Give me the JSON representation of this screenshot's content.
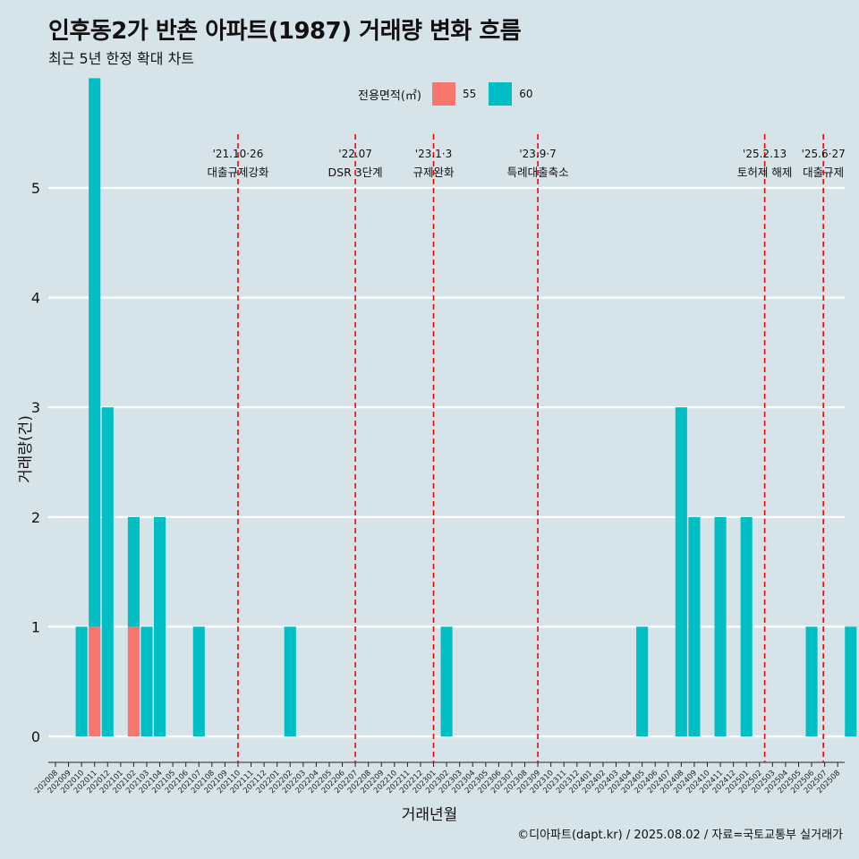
{
  "title": "인후동2가 반촌 아파트(1987) 거래량 변화 흐름",
  "subtitle": "최근 5년 한정 확대 차트",
  "legend": {
    "title": "전용면적(㎡)",
    "items": [
      {
        "label": "55",
        "color": "#F8766D"
      },
      {
        "label": "60",
        "color": "#00BFC4"
      }
    ]
  },
  "caption": "©디아파트(dapt.kr) / 2025.08.02 / 자료=국토교통부 실거래가",
  "chart_data": {
    "type": "bar",
    "title": "인후동2가 반촌 아파트(1987) 거래량 변화 흐름",
    "subtitle": "최근 5년 한정 확대 차트",
    "xlabel": "거래년월",
    "ylabel": "거래량(건)",
    "ylim": [
      0,
      5
    ],
    "yticks": [
      0,
      1,
      2,
      3,
      4,
      5
    ],
    "grid": true,
    "legend_position": "top",
    "categories": [
      "202008",
      "202009",
      "202010",
      "202011",
      "202012",
      "202101",
      "202102",
      "202103",
      "202104",
      "202105",
      "202106",
      "202107",
      "202108",
      "202109",
      "202110",
      "202111",
      "202112",
      "202201",
      "202202",
      "202203",
      "202204",
      "202205",
      "202206",
      "202207",
      "202208",
      "202209",
      "202210",
      "202211",
      "202212",
      "202301",
      "202302",
      "202303",
      "202304",
      "202305",
      "202306",
      "202307",
      "202308",
      "202309",
      "202310",
      "202311",
      "202312",
      "202401",
      "202402",
      "202403",
      "202404",
      "202405",
      "202406",
      "202407",
      "202408",
      "202409",
      "202410",
      "202411",
      "202412",
      "202501",
      "202502",
      "202503",
      "202504",
      "202505",
      "202506",
      "202507",
      "202508"
    ],
    "series": [
      {
        "name": "55",
        "color": "#F8766D",
        "bars": [
          {
            "x": "202011",
            "y": 1
          },
          {
            "x": "202102",
            "y": 1
          }
        ]
      },
      {
        "name": "60",
        "color": "#00BFC4",
        "bars": [
          {
            "x": "202010",
            "y": 1
          },
          {
            "x": "202011",
            "y": 5
          },
          {
            "x": "202012",
            "y": 3
          },
          {
            "x": "202102",
            "y": 1
          },
          {
            "x": "202103",
            "y": 1
          },
          {
            "x": "202104",
            "y": 2
          },
          {
            "x": "202107",
            "y": 1
          },
          {
            "x": "202202",
            "y": 1
          },
          {
            "x": "202302",
            "y": 1
          },
          {
            "x": "202405",
            "y": 1
          },
          {
            "x": "202408",
            "y": 3
          },
          {
            "x": "202409",
            "y": 2
          },
          {
            "x": "202411",
            "y": 2
          },
          {
            "x": "202501",
            "y": 2
          },
          {
            "x": "202506",
            "y": 1
          },
          {
            "x": "202509",
            "y": 1
          }
        ]
      }
    ],
    "annotations": [
      {
        "x": "202110",
        "line1": "'21.10·26",
        "line2": "대출규제강화",
        "offset": 0
      },
      {
        "x": "202207",
        "line1": "'22.07",
        "line2": "DSR 3단계",
        "offset": 0
      },
      {
        "x": "202301",
        "line1": "'23.1·3",
        "line2": "규제완화",
        "offset": 0
      },
      {
        "x": "202309",
        "line1": "'23.9·7",
        "line2": "특례대출축소",
        "offset": 0
      },
      {
        "x": "202502",
        "line1": "'25.2.13",
        "line2": "토허제 해제",
        "offset": 0.4
      },
      {
        "x": "202506",
        "line1": "'25.6·27",
        "line2": "대출규제",
        "offset": 0.9
      }
    ],
    "annotation_color": "#FF0000"
  }
}
